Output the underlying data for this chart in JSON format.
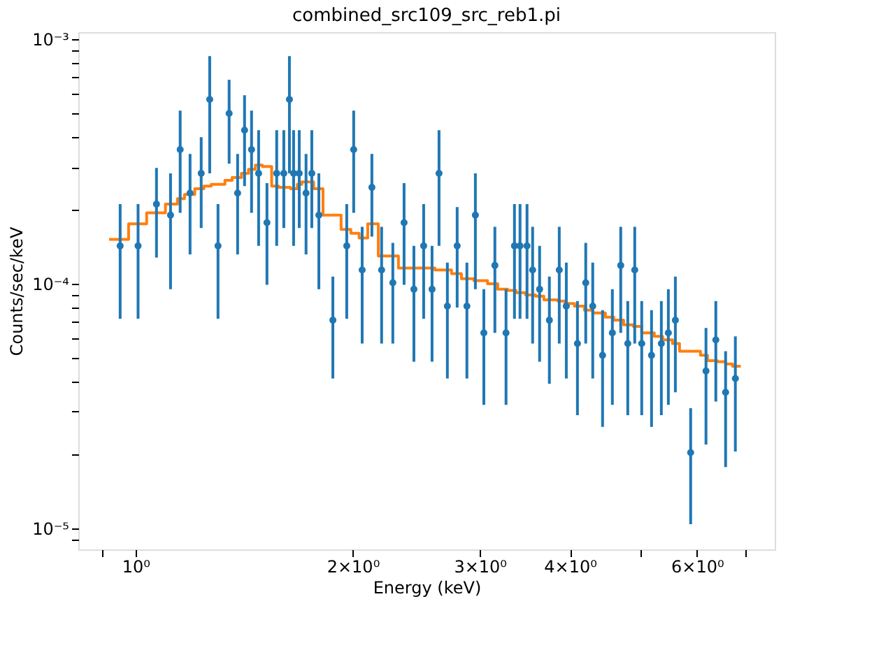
{
  "chart_data": {
    "type": "scatter",
    "title": "combined_src109_src_reb1.pi",
    "xlabel": "Energy (keV)",
    "ylabel": "Counts/sec/keV",
    "log": "xy",
    "grid": false,
    "legend": false,
    "xlim": [
      0.833,
      7.69
    ],
    "ylim": [
      8.2e-06,
      0.00107
    ],
    "xticks": [
      {
        "value": 0.9,
        "label": null
      },
      {
        "value": 1,
        "label": "10⁰"
      },
      {
        "value": 2,
        "label": "2×10⁰"
      },
      {
        "value": 3,
        "label": "3×10⁰"
      },
      {
        "value": 4,
        "label": "4×10⁰"
      },
      {
        "value": 5,
        "label": null
      },
      {
        "value": 6,
        "label": "6×10⁰"
      },
      {
        "value": 7,
        "label": null
      }
    ],
    "yticks": [
      {
        "value": 9e-06,
        "label": null
      },
      {
        "value": 1e-05,
        "label": "10⁻⁵"
      },
      {
        "value": 2e-05,
        "label": null
      },
      {
        "value": 3e-05,
        "label": null
      },
      {
        "value": 4e-05,
        "label": null
      },
      {
        "value": 5e-05,
        "label": null
      },
      {
        "value": 6e-05,
        "label": null
      },
      {
        "value": 7e-05,
        "label": null
      },
      {
        "value": 8e-05,
        "label": null
      },
      {
        "value": 9e-05,
        "label": null
      },
      {
        "value": 0.0001,
        "label": "10⁻⁴"
      },
      {
        "value": 0.0002,
        "label": null
      },
      {
        "value": 0.0003,
        "label": null
      },
      {
        "value": 0.0004,
        "label": null
      },
      {
        "value": 0.0005,
        "label": null
      },
      {
        "value": 0.0006,
        "label": null
      },
      {
        "value": 0.0007,
        "label": null
      },
      {
        "value": 0.0008,
        "label": null
      },
      {
        "value": 0.0009,
        "label": null
      },
      {
        "value": 0.001,
        "label": "10⁻³"
      }
    ],
    "series": [
      {
        "type": "scatter",
        "marker": "circle",
        "color": "#1f77b4",
        "x": [
          0.952,
          1.008,
          1.069,
          1.118,
          1.153,
          1.19,
          1.233,
          1.267,
          1.301,
          1.348,
          1.385,
          1.416,
          1.448,
          1.481,
          1.521,
          1.569,
          1.605,
          1.634,
          1.656,
          1.686,
          1.723,
          1.755,
          1.795,
          1.877,
          1.962,
          2.006,
          2.061,
          2.126,
          2.193,
          2.273,
          2.356,
          2.431,
          2.508,
          2.576,
          2.634,
          2.705,
          2.791,
          2.879,
          2.958,
          3.039,
          3.148,
          3.262,
          3.351,
          3.411,
          3.488,
          3.551,
          3.631,
          3.746,
          3.866,
          3.954,
          4.097,
          4.207,
          4.302,
          4.439,
          4.58,
          4.704,
          4.811,
          4.919,
          5.03,
          5.19,
          5.355,
          5.476,
          5.6,
          5.88,
          6.175,
          6.372,
          6.574,
          6.782
        ],
        "values": [
          0.000143,
          0.000143,
          0.000212,
          0.000191,
          0.000354,
          0.000235,
          0.000283,
          0.000568,
          0.000143,
          0.000498,
          0.000235,
          0.000425,
          0.000354,
          0.000283,
          0.000178,
          0.000283,
          0.000283,
          0.000568,
          0.000283,
          0.000283,
          0.000235,
          0.000283,
          0.000191,
          7.1e-05,
          0.000143,
          0.000354,
          0.000114,
          0.000248,
          0.000114,
          0.000101,
          0.000178,
          9.5e-05,
          0.000143,
          9.5e-05,
          0.000283,
          8.1e-05,
          0.000143,
          8.1e-05,
          0.000191,
          6.3e-05,
          0.000119,
          6.3e-05,
          0.000143,
          0.000143,
          0.000143,
          0.000114,
          9.5e-05,
          7.1e-05,
          0.000114,
          8.1e-05,
          5.7e-05,
          0.000101,
          8.1e-05,
          5.1e-05,
          6.3e-05,
          0.000119,
          5.7e-05,
          0.000114,
          5.7e-05,
          5.1e-05,
          5.7e-05,
          6.3e-05,
          7.1e-05,
          2.04e-05,
          4.4e-05,
          5.9e-05,
          3.6e-05,
          4.1e-05
        ],
        "errors": [
          [
            7.2e-05,
            0.000212
          ],
          [
            7.2e-05,
            0.000212
          ],
          [
            0.000128,
            0.000298
          ],
          [
            9.5e-05,
            0.000283
          ],
          [
            0.000195,
            0.000511
          ],
          [
            0.000132,
            0.00034
          ],
          [
            0.000169,
            0.000398
          ],
          [
            0.000283,
            0.000854
          ],
          [
            7.2e-05,
            0.000212
          ],
          [
            0.00031,
            0.000683
          ],
          [
            0.000132,
            0.00034
          ],
          [
            0.000251,
            0.000591
          ],
          [
            0.000195,
            0.000511
          ],
          [
            0.000143,
            0.000425
          ],
          [
            9.9e-05,
            0.000258
          ],
          [
            0.000143,
            0.000425
          ],
          [
            0.000169,
            0.000425
          ],
          [
            0.000283,
            0.000854
          ],
          [
            0.000143,
            0.000425
          ],
          [
            0.000169,
            0.000425
          ],
          [
            0.000132,
            0.00034
          ],
          [
            0.000169,
            0.000425
          ],
          [
            9.5e-05,
            0.000283
          ],
          [
            4.1e-05,
            0.000107
          ],
          [
            7.2e-05,
            0.000212
          ],
          [
            0.000195,
            0.000511
          ],
          [
            5.7e-05,
            0.000171
          ],
          [
            0.000156,
            0.00034
          ],
          [
            5.7e-05,
            0.000171
          ],
          [
            5.7e-05,
            0.000147
          ],
          [
            9.9e-05,
            0.000258
          ],
          [
            4.8e-05,
            0.000143
          ],
          [
            7.2e-05,
            0.000212
          ],
          [
            4.8e-05,
            0.000143
          ],
          [
            0.000143,
            0.000425
          ],
          [
            4.1e-05,
            0.000122
          ],
          [
            8e-05,
            0.000206
          ],
          [
            4.1e-05,
            0.000122
          ],
          [
            9.5e-05,
            0.000283
          ],
          [
            3.2e-05,
            9.5e-05
          ],
          [
            6.3e-05,
            0.000171
          ],
          [
            3.2e-05,
            9.5e-05
          ],
          [
            7.2e-05,
            0.000212
          ],
          [
            7.2e-05,
            0.000212
          ],
          [
            7.2e-05,
            0.000212
          ],
          [
            5.7e-05,
            0.000171
          ],
          [
            4.8e-05,
            0.000143
          ],
          [
            3.9e-05,
            0.000107
          ],
          [
            5.7e-05,
            0.000171
          ],
          [
            4.1e-05,
            0.000122
          ],
          [
            2.9e-05,
            8.5e-05
          ],
          [
            5.7e-05,
            0.000147
          ],
          [
            4.1e-05,
            0.000122
          ],
          [
            2.6e-05,
            7.8e-05
          ],
          [
            3.2e-05,
            9.5e-05
          ],
          [
            6.3e-05,
            0.000171
          ],
          [
            2.9e-05,
            8.5e-05
          ],
          [
            5.7e-05,
            0.000171
          ],
          [
            2.9e-05,
            8.5e-05
          ],
          [
            2.6e-05,
            7.8e-05
          ],
          [
            2.9e-05,
            8.5e-05
          ],
          [
            3.2e-05,
            9.5e-05
          ],
          [
            3.6e-05,
            0.000107
          ],
          [
            1.04e-05,
            3.1e-05
          ],
          [
            2.2e-05,
            6.6e-05
          ],
          [
            3.3e-05,
            8.5e-05
          ],
          [
            1.78e-05,
            5.3e-05
          ],
          [
            2.06e-05,
            6.1e-05
          ]
        ]
      },
      {
        "type": "step",
        "color": "#ff7f0e",
        "x": [
          0.919,
          0.978,
          1.036,
          1.1,
          1.143,
          1.169,
          1.208,
          1.244,
          1.273,
          1.33,
          1.361,
          1.402,
          1.434,
          1.466,
          1.499,
          1.544,
          1.579,
          1.639,
          1.676,
          1.7,
          1.765,
          1.819,
          1.927,
          1.988,
          2.041,
          2.098,
          2.17,
          2.314,
          2.6,
          2.741,
          2.829,
          2.944,
          3.075,
          3.177,
          3.279,
          3.367,
          3.473,
          3.584,
          3.681,
          3.848,
          3.935,
          4.059,
          4.19,
          4.302,
          4.479,
          4.6,
          4.748,
          4.898,
          5.03,
          5.236,
          5.378,
          5.549,
          5.675,
          6.067,
          6.204,
          6.4,
          6.574,
          6.72,
          6.9
        ],
        "values": [
          0.000152,
          0.000176,
          0.000195,
          0.000212,
          0.000223,
          0.000232,
          0.000245,
          0.000251,
          0.000255,
          0.000265,
          0.000272,
          0.000283,
          0.000294,
          0.000306,
          0.000302,
          0.000251,
          0.000248,
          0.000245,
          0.000255,
          0.000261,
          0.000245,
          0.000191,
          0.000167,
          0.000161,
          0.000154,
          0.000176,
          0.00013,
          0.000116,
          0.000114,
          0.00011,
          0.000105,
          0.000103,
          0.0001,
          9.5e-05,
          9.4e-05,
          9.2e-05,
          9e-05,
          8.9e-05,
          8.6e-05,
          8.5e-05,
          8.3e-05,
          8.1e-05,
          7.8e-05,
          7.6e-05,
          7.3e-05,
          7.1e-05,
          6.8e-05,
          6.7e-05,
          6.3e-05,
          6.1e-05,
          5.9e-05,
          5.7e-05,
          5.3e-05,
          5.1e-05,
          4.85e-05,
          4.8e-05,
          4.7e-05,
          4.6e-05,
          4.6e-05
        ]
      }
    ]
  }
}
